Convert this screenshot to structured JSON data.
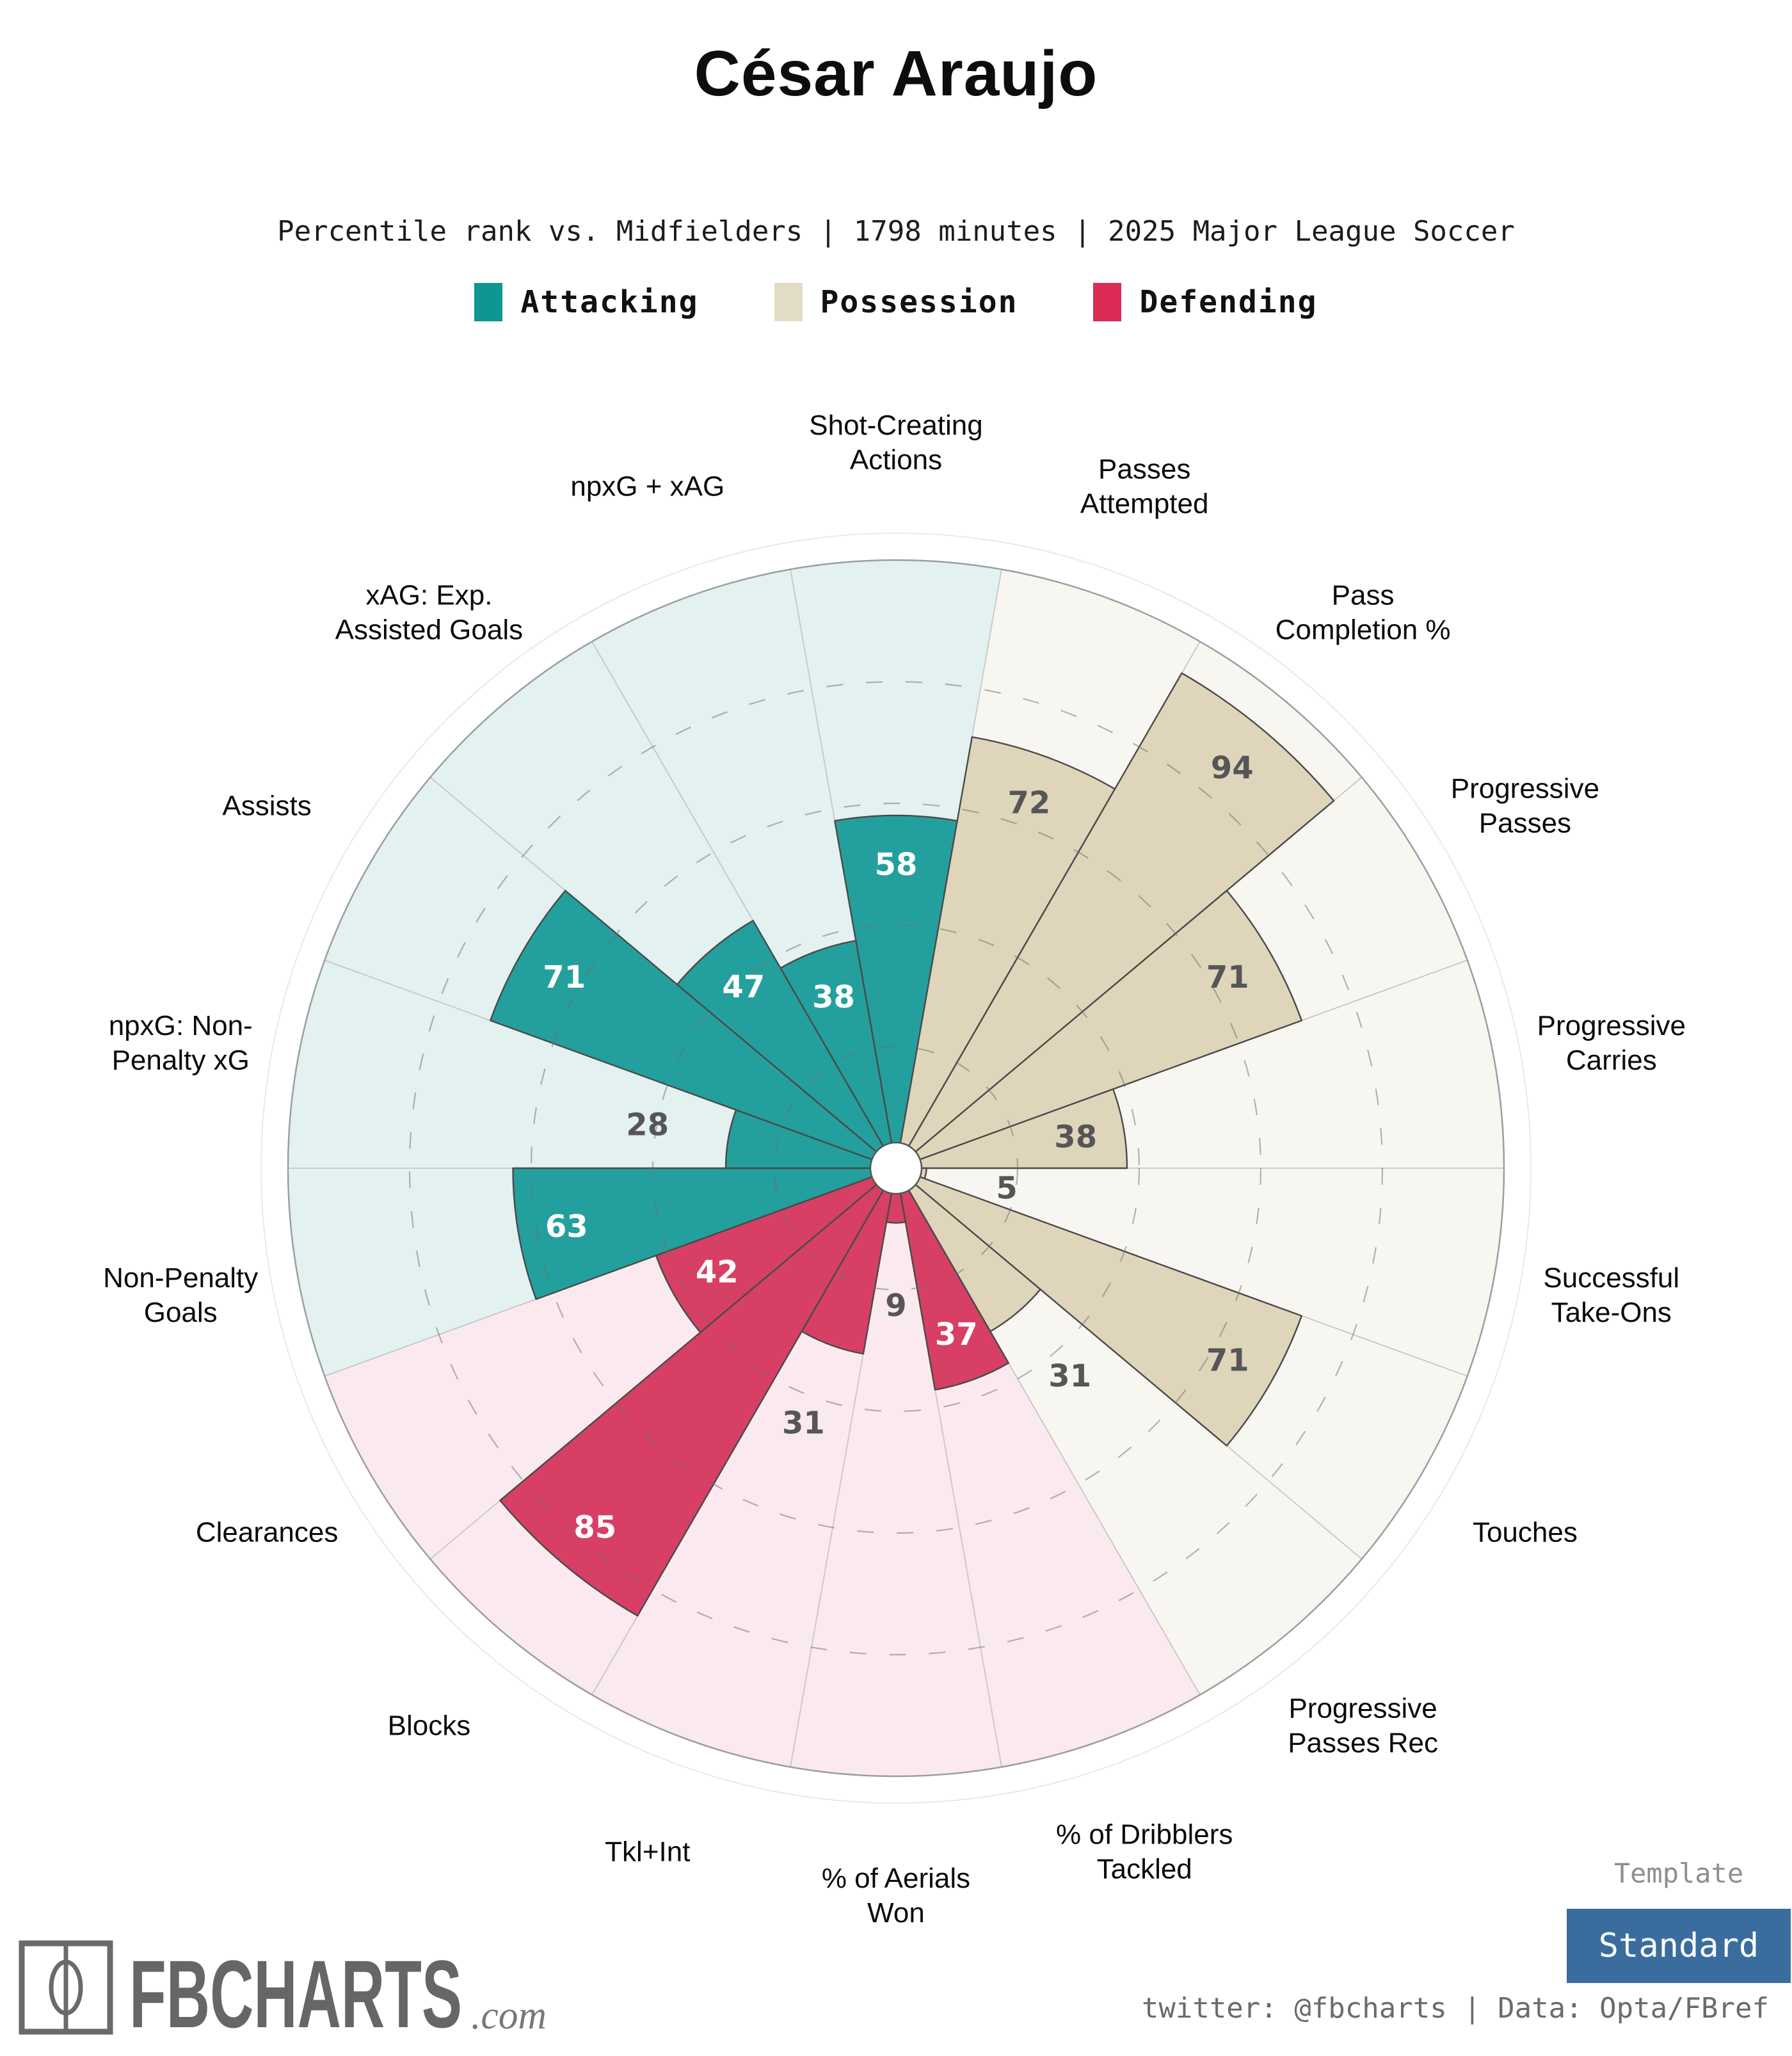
{
  "title": "César Araujo",
  "subtitle": "Percentile rank vs. Midfielders | 1798 minutes | 2025 Major League Soccer",
  "legend": [
    {
      "label": "Attacking",
      "group": "attacking"
    },
    {
      "label": "Possession",
      "group": "possession"
    },
    {
      "label": "Defending",
      "group": "defending"
    }
  ],
  "colors": {
    "attacking": "#0e9594",
    "attacking_fill": "#23a09d",
    "attacking_bg": "#e3f1f0",
    "possession": "#e3dcc4",
    "possession_fill": "#ded5bb",
    "possession_bg": "#f8f6f0",
    "defending": "#da2c55",
    "defending_fill": "#d83f64",
    "defending_bg": "#fae9ee",
    "value_dark": "#565656",
    "value_light": "#ffffff",
    "outline": "#4a4a4a",
    "spoke": "#c4c4c4",
    "ring": "#6e6e6e",
    "rim": "#9e9e9e",
    "rim_outer": "#e4e4e4",
    "hub_stroke": "#555555",
    "label_color": "#0b0b0b",
    "button": "#3a6d9e",
    "logo_gray": "#6a6a6a"
  },
  "chart_data": {
    "type": "radial_bar",
    "description": "Pizza percentile chart: 18 slices of 20 degrees, values are percentile ranks 0-100",
    "max": 100,
    "gridlines": [
      20,
      40,
      60,
      80
    ],
    "grid_style": "dashed",
    "slices": [
      {
        "stat": "Shot-Creating Actions",
        "lines": [
          "Shot-Creating",
          "Actions"
        ],
        "value": 58,
        "group": "attacking"
      },
      {
        "stat": "Passes Attempted",
        "lines": [
          "Passes",
          "Attempted"
        ],
        "value": 72,
        "group": "possession"
      },
      {
        "stat": "Pass Completion %",
        "lines": [
          "Pass",
          "Completion %"
        ],
        "value": 94,
        "group": "possession"
      },
      {
        "stat": "Progressive Passes",
        "lines": [
          "Progressive",
          "Passes"
        ],
        "value": 71,
        "group": "possession"
      },
      {
        "stat": "Progressive Carries",
        "lines": [
          "Progressive",
          "Carries"
        ],
        "value": 38,
        "group": "possession"
      },
      {
        "stat": "Successful Take-Ons",
        "lines": [
          "Successful",
          "Take-Ons"
        ],
        "value": 5,
        "group": "possession"
      },
      {
        "stat": "Touches",
        "lines": [
          "Touches"
        ],
        "value": 71,
        "group": "possession"
      },
      {
        "stat": "Progressive Passes Rec",
        "lines": [
          "Progressive",
          "Passes Rec"
        ],
        "value": 31,
        "group": "possession"
      },
      {
        "stat": "% of Dribblers Tackled",
        "lines": [
          "% of Dribblers",
          "Tackled"
        ],
        "value": 37,
        "group": "defending"
      },
      {
        "stat": "% of Aerials Won",
        "lines": [
          "% of Aerials",
          "Won"
        ],
        "value": 9,
        "group": "defending"
      },
      {
        "stat": "Tkl+Int",
        "lines": [
          "Tkl+Int"
        ],
        "value": 31,
        "group": "defending"
      },
      {
        "stat": "Blocks",
        "lines": [
          "Blocks"
        ],
        "value": 85,
        "group": "defending"
      },
      {
        "stat": "Clearances",
        "lines": [
          "Clearances"
        ],
        "value": 42,
        "group": "defending"
      },
      {
        "stat": "Non-Penalty Goals",
        "lines": [
          "Non-Penalty",
          "Goals"
        ],
        "value": 63,
        "group": "attacking"
      },
      {
        "stat": "npxG: Non-Penalty xG",
        "lines": [
          "npxG: Non-",
          "Penalty xG"
        ],
        "value": 28,
        "group": "attacking"
      },
      {
        "stat": "Assists",
        "lines": [
          "Assists"
        ],
        "value": 71,
        "group": "attacking"
      },
      {
        "stat": "xAG: Exp. Assisted Goals",
        "lines": [
          "xAG: Exp.",
          "Assisted Goals"
        ],
        "value": 47,
        "group": "attacking"
      },
      {
        "stat": "npxG + xAG",
        "lines": [
          "npxG + xAG"
        ],
        "value": 38,
        "group": "attacking"
      }
    ]
  },
  "footer": {
    "logo_text": "FBCHARTS",
    "logo_suffix": ".com",
    "template_label": "Template",
    "template_value": "Standard",
    "credit": "twitter: @fbcharts | Data: Opta/FBref"
  }
}
